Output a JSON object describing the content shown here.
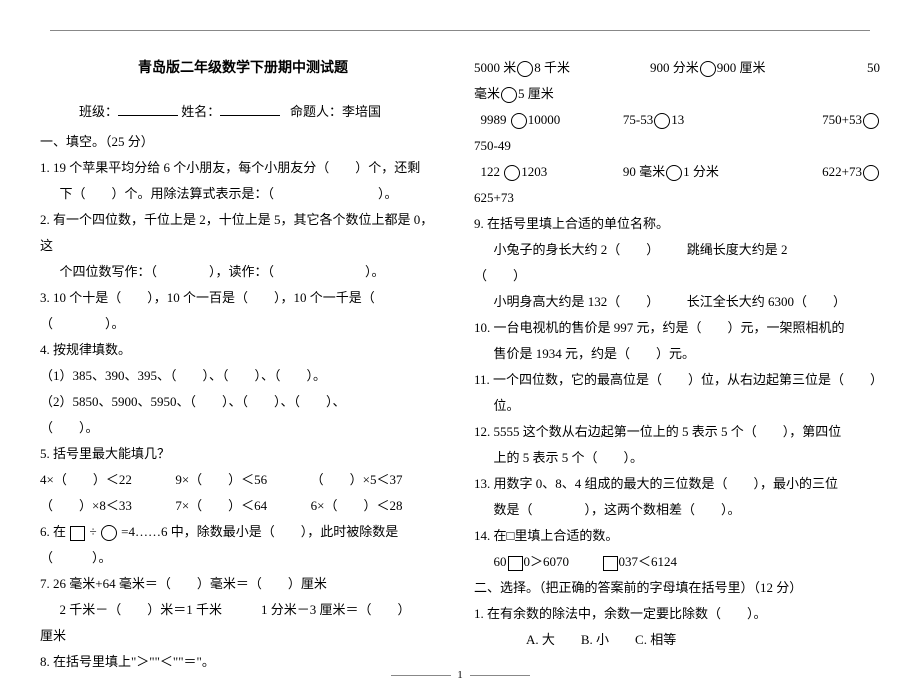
{
  "title": "青岛版二年级数学下册期中测试题",
  "header": {
    "class_label": "班级：",
    "name_label": "姓名：",
    "author_label": "命题人：李培国"
  },
  "left": {
    "section1": "一、填空。（25 分）",
    "q1a": "1. 19 个苹果平均分给 6 个小朋友，每个小朋友分（　　）个，还剩",
    "q1b": "下（　　）个。用除法算式表示是：（　　　　　　　　）。",
    "q2a": "2. 有一个四位数，千位上是 2，十位上是 5，其它各个数位上都是 0，这",
    "q2b": "个四位数写作：（　　　　），读作：（　　　　　　　）。",
    "q3a": "3. 10 个十是（　　），10 个一百是（　　），10 个一千是（　　",
    "q3b": "（　　　　）。",
    "q4": "4. 按规律填数。",
    "q4_1": "（1）385、390、395、（　　）、（　　）、（　　）。",
    "q4_2": "（2）5850、5900、5950、（　　）、（　　）、（　　）、",
    "q4_2b": "（　　）。",
    "q5": "5. 括号里最大能填几？",
    "q5_row1a": "4×（　　）＜22",
    "q5_row1b": "9×（　　）＜56",
    "q5_row1c": "（　　）×5＜37",
    "q5_row2a": "（　　）×8＜33",
    "q5_row2b": "7×（　　）＜64",
    "q5_row2c": "6×（　　）＜28",
    "q6a": "6. 在",
    "q6b": "÷",
    "q6c": "=4……6 中，除数最小是（　　），此时被除数是",
    "q6d": "（　　　）。",
    "q7a": "7. 26 毫米+64 毫米＝（　　）毫米＝（　　）厘米",
    "q7b": "2 千米－（　　）米＝1 千米　　　1 分米－3 厘米＝（　　）",
    "q7c": "厘米",
    "q8": "8. 在括号里填上\"＞\"\"＜\"\"＝\"。"
  },
  "right": {
    "r1a": "5000 米",
    "r1b": "8 千米",
    "r1c": "900 分米",
    "r1d": "900 厘米",
    "r1e": "50",
    "r1f": "毫米",
    "r1g": "5 厘米",
    "r2a": "9989",
    "r2b": "10000",
    "r2c": "75-53",
    "r2d": "13",
    "r2e": "750+53",
    "r2f": "750-49",
    "r3a": "122",
    "r3b": "1203",
    "r3c": "90 毫米",
    "r3d": "1 分米",
    "r3e": "622+73",
    "r3f": "625+73",
    "q9": "9. 在括号里填上合适的单位名称。",
    "q9a": "小兔子的身长大约 2（　　）",
    "q9b": "跳绳长度大约是 2",
    "q9b2": "（　　）",
    "q9c": "小明身高大约是 132（　　）",
    "q9d": "长江全长大约 6300（　　）",
    "q10a": "10. 一台电视机的售价是 997 元，约是（　　）元，一架照相机的",
    "q10b": "售价是 1934 元，约是（　　）元。",
    "q11a": "11. 一个四位数，它的最高位是（　　）位，从右边起第三位是（　　）",
    "q11b": "位。",
    "q12a": "12. 5555 这个数从右边起第一位上的 5 表示 5 个（　　），第四位",
    "q12b": "上的 5 表示 5 个（　　）。",
    "q13a": "13. 用数字 0、8、4 组成的最大的三位数是（　　），最小的三位",
    "q13b": "数是（　　　　），这两个数相差（　　）。",
    "q14": "14. 在□里填上合适的数。",
    "q14a_pre": "60",
    "q14a_post": "0＞6070",
    "q14b_post": "037＜6124",
    "section2": "二、选择。（把正确的答案前的字母填在括号里）（12 分）",
    "s2q1": "1. 在有余数的除法中，余数一定要比除数（　　）。",
    "s2q1opts": "A. 大　　B. 小　　C. 相等"
  },
  "footer": "1"
}
